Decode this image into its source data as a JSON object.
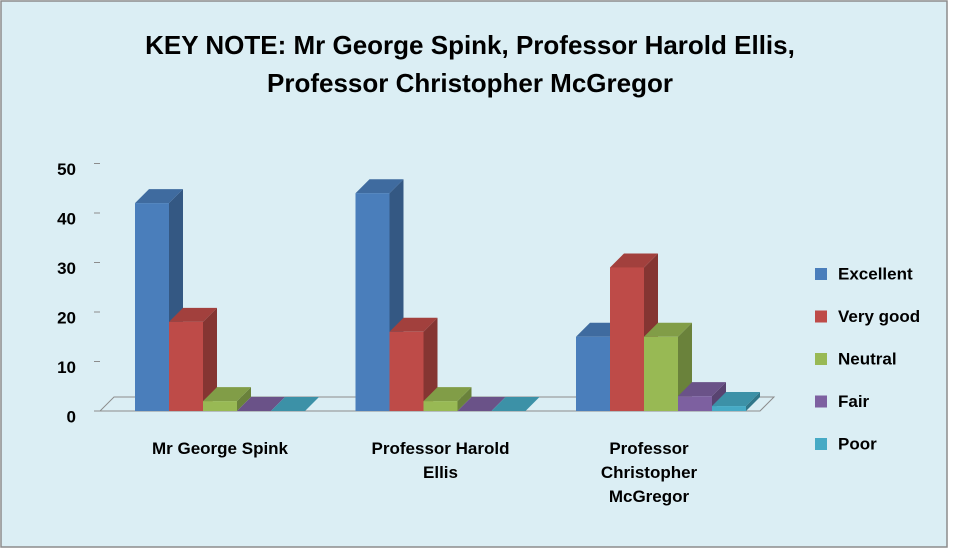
{
  "chart_data": {
    "type": "bar3d",
    "title": "KEY NOTE: Mr George Spink, Professor Harold Ellis, Professor Christopher McGregor",
    "categories": [
      "Mr George Spink",
      "Professor Harold Ellis",
      "Professor Christopher McGregor"
    ],
    "series": [
      {
        "name": "Excellent",
        "color": "#4a7ebb",
        "values": [
          42,
          44,
          15
        ]
      },
      {
        "name": "Very good",
        "color": "#be4b48",
        "values": [
          18,
          16,
          29
        ]
      },
      {
        "name": "Neutral",
        "color": "#98b954",
        "values": [
          2,
          2,
          15
        ]
      },
      {
        "name": "Fair",
        "color": "#7d60a0",
        "values": [
          0,
          0,
          3
        ]
      },
      {
        "name": "Poor",
        "color": "#46aac5",
        "values": [
          0,
          0,
          1
        ]
      }
    ],
    "ylim": [
      0,
      50
    ],
    "yticks": [
      0,
      10,
      20,
      30,
      40,
      50
    ],
    "grid": false,
    "legend": "right"
  }
}
